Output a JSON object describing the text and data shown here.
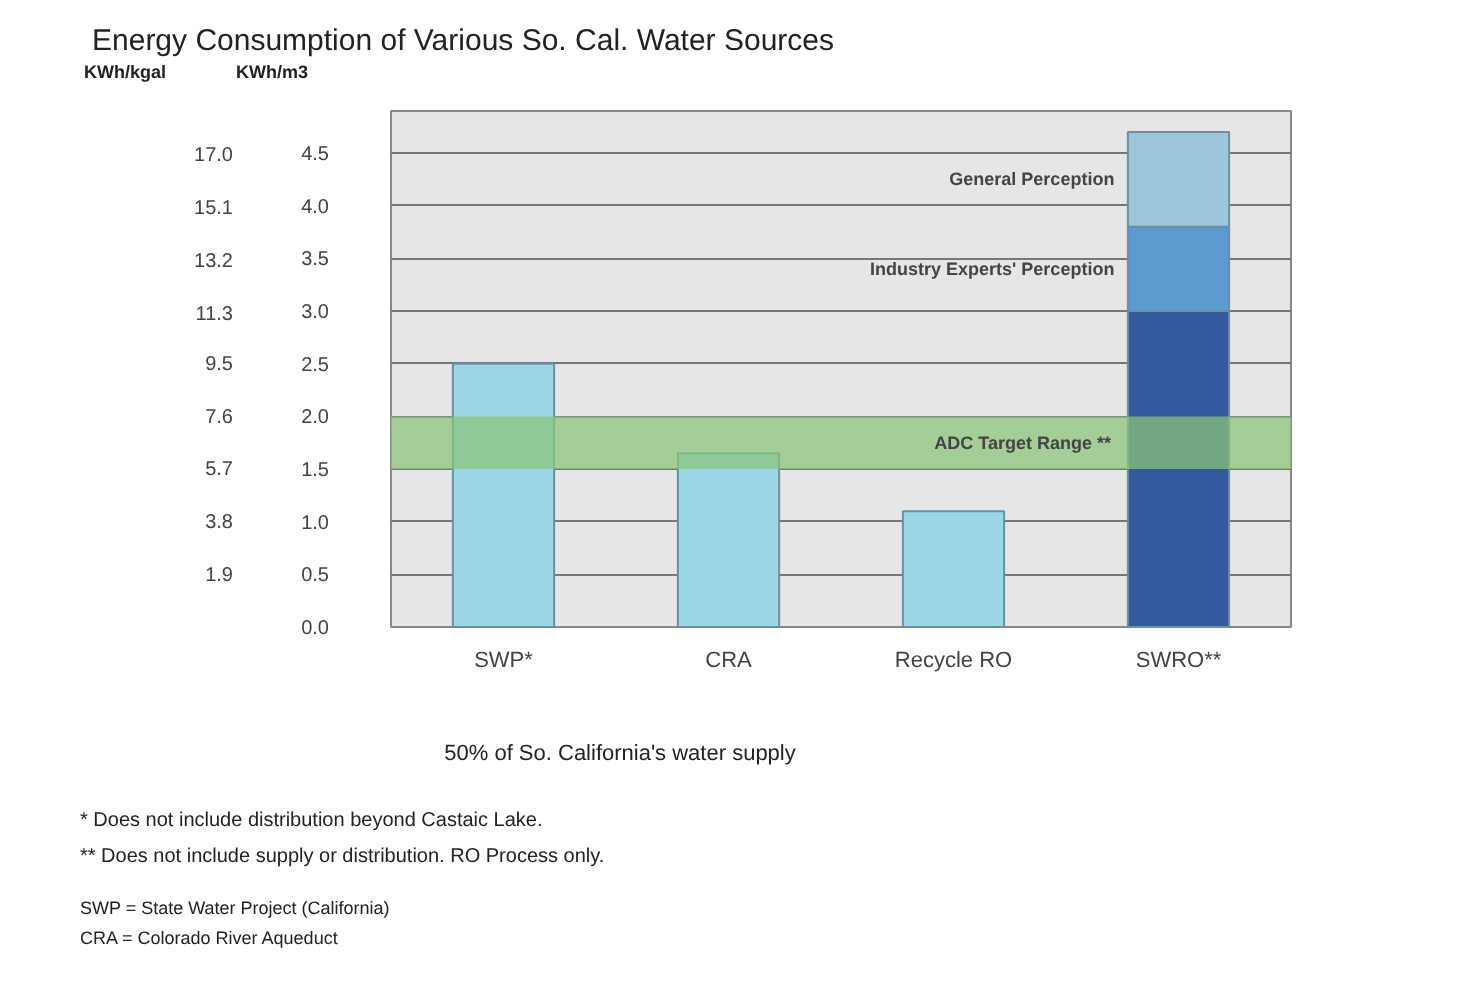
{
  "chart_data": {
    "type": "bar",
    "title": "Energy Consumption of Various So. Cal. Water Sources",
    "ylabel": "KWh/m3",
    "y2label": "KWh/kgal",
    "categories": [
      "SWP*",
      "CRA",
      "Recycle RO",
      "SWRO**"
    ],
    "stacked": true,
    "series": [
      {
        "colors": [
          "#9ad8e8",
          "#9ad8e8",
          "#9ad8e8",
          "#34599c"
        ],
        "values": [
          2.5,
          1.65,
          1.1,
          3.0
        ]
      },
      {
        "name": "Industry Experts' Perception",
        "color": "#5b9bcf",
        "values": [
          null,
          null,
          null,
          0.8
        ]
      },
      {
        "name": "General Perception",
        "color": "#9ec6da",
        "values": [
          null,
          null,
          null,
          0.9
        ]
      }
    ],
    "ylim": [
      0,
      4.9
    ],
    "yticks": [
      {
        "value": 0,
        "label": "0.0"
      },
      0.5,
      {
        "value": 1,
        "label": "1.0"
      },
      1.5,
      {
        "value": 2,
        "label": "2.0"
      },
      2.5,
      {
        "value": 3,
        "label": "3.0"
      },
      3.5,
      {
        "value": 4,
        "label": "4.0"
      },
      4.5
    ],
    "y2lim": [
      0,
      18.55
    ],
    "y2ticks": [
      1.9,
      3.8,
      5.7,
      7.6,
      9.5,
      11.3,
      13.2,
      15.1,
      {
        "value": 17,
        "label": "17.0"
      }
    ],
    "bands": [
      {
        "axis": "y",
        "from": 1.5,
        "to": 2.0,
        "label": "ADC Target Range **",
        "color": "#8cc479"
      }
    ],
    "grid": "y",
    "legend": false,
    "annotations": [
      "50% of So. California's water supply",
      "* Does not include distribution beyond Castaic Lake.",
      "** Does not include supply or distribution. RO Process only.",
      "SWP = State Water Project (California)",
      "CRA = Colorado River Aqueduct"
    ]
  }
}
